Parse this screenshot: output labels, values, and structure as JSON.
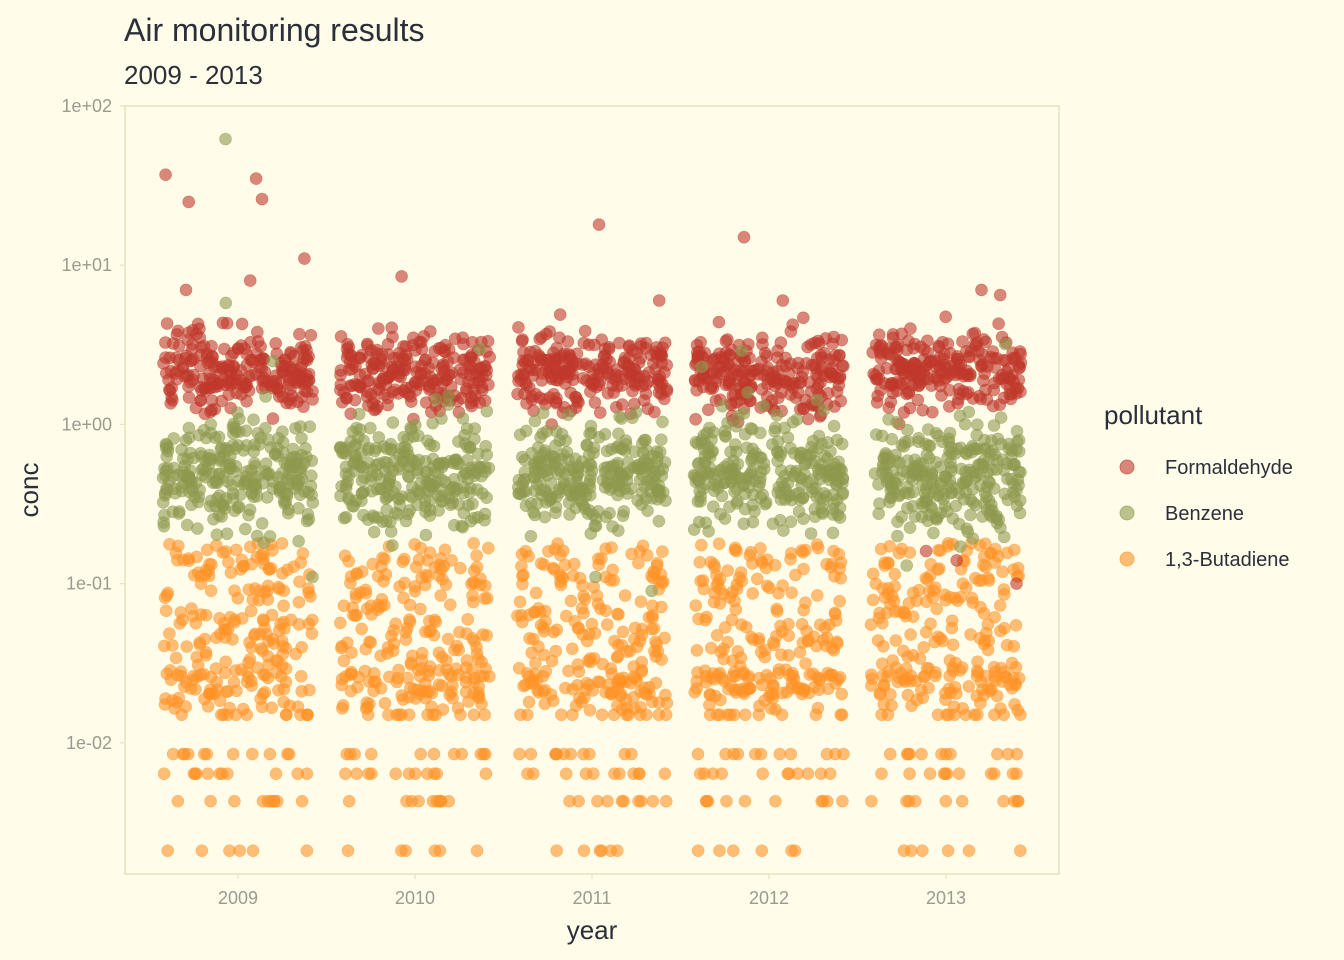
{
  "chart_data": {
    "type": "scatter",
    "title": "Air monitoring results",
    "subtitle": "2009 - 2013",
    "xlabel": "year",
    "ylabel": "conc",
    "y_scale": "log10",
    "ylim": [
      0.0015,
      100
    ],
    "y_ticks": [
      {
        "value": 0.01,
        "label": "1e-02"
      },
      {
        "value": 0.1,
        "label": "1e-01"
      },
      {
        "value": 1,
        "label": "1e+00"
      },
      {
        "value": 10,
        "label": "1e+01"
      },
      {
        "value": 100,
        "label": "1e+02"
      }
    ],
    "categories": [
      "2009",
      "2010",
      "2011",
      "2012",
      "2013"
    ],
    "grid": false,
    "legend": {
      "title": "pollutant",
      "position": "right"
    },
    "colors": {
      "Formaldehyde": "#c0392b",
      "Benzene": "#8f9a4e",
      "1,3-Butadiene": "#ff9326",
      "background": "#fffdea",
      "panel_border": "#e8e2c0"
    },
    "series": [
      {
        "name": "Formaldehyde",
        "typical_range": [
          0.9,
          5.0
        ],
        "outliers": [
          {
            "x": "2009",
            "y": 35
          },
          {
            "x": "2009",
            "y": 26
          },
          {
            "x": "2009",
            "y": 25
          },
          {
            "x": "2009",
            "y": 37
          },
          {
            "x": "2009",
            "y": 11
          },
          {
            "x": "2009",
            "y": 8
          },
          {
            "x": "2009",
            "y": 7
          },
          {
            "x": "2010",
            "y": 8.5
          },
          {
            "x": "2011",
            "y": 18
          },
          {
            "x": "2011",
            "y": 6
          },
          {
            "x": "2012",
            "y": 15
          },
          {
            "x": "2012",
            "y": 6
          },
          {
            "x": "2013",
            "y": 6.5
          },
          {
            "x": "2013",
            "y": 7
          },
          {
            "x": "2013",
            "y": 0.1
          },
          {
            "x": "2013",
            "y": 0.14
          },
          {
            "x": "2013",
            "y": 0.16
          }
        ]
      },
      {
        "name": "Benzene",
        "typical_range": [
          0.15,
          1.6
        ],
        "outliers": [
          {
            "x": "2009",
            "y": 62
          },
          {
            "x": "2009",
            "y": 5.8
          },
          {
            "x": "2009",
            "y": 2.5
          },
          {
            "x": "2009",
            "y": 0.11
          },
          {
            "x": "2010",
            "y": 3.0
          },
          {
            "x": "2011",
            "y": 0.09
          },
          {
            "x": "2011",
            "y": 0.11
          },
          {
            "x": "2012",
            "y": 2.9
          },
          {
            "x": "2012",
            "y": 2.3
          },
          {
            "x": "2013",
            "y": 3.2
          },
          {
            "x": "2013",
            "y": 0.13
          }
        ]
      },
      {
        "name": "1,3-Butadiene",
        "typical_range": [
          0.02,
          0.18
        ],
        "discrete_levels": [
          0.015,
          0.0085,
          0.0064,
          0.0043,
          0.0021,
          0.0015
        ]
      }
    ]
  }
}
